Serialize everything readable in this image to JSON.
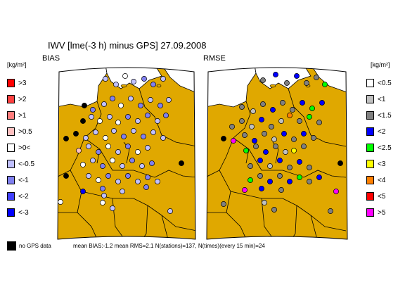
{
  "title": "IWV [lme(-3 h) minus GPS] 27.09.2008",
  "panels": {
    "bias": {
      "label": "BIAS"
    },
    "rmse": {
      "label": "RMSE"
    }
  },
  "unit_label": "[kg/m²]",
  "colors": {
    "land": "#e0a800",
    "sea": "#ffffff",
    "border": "#000000"
  },
  "legend_bias": [
    {
      "label": ">3",
      "color": "#ff0000"
    },
    {
      "label": ">2",
      "color": "#ff4040"
    },
    {
      "label": ">1",
      "color": "#ff7c7c"
    },
    {
      "label": ">0.5",
      "color": "#ffc0c0"
    },
    {
      "label": ">0<",
      "color": "#ffffff"
    },
    {
      "label": "<-0.5",
      "color": "#c0c0ff"
    },
    {
      "label": "<-1",
      "color": "#8080f0"
    },
    {
      "label": "<-2",
      "color": "#4040ff"
    },
    {
      "label": "<-3",
      "color": "#0000ff"
    }
  ],
  "legend_rmse": [
    {
      "label": "<0.5",
      "color": "#ffffff"
    },
    {
      "label": "<1",
      "color": "#c0c0c0"
    },
    {
      "label": "<1.5",
      "color": "#808080"
    },
    {
      "label": "<2",
      "color": "#0000ff"
    },
    {
      "label": "<2.5",
      "color": "#00ff00"
    },
    {
      "label": "<3",
      "color": "#ffff00"
    },
    {
      "label": "<4",
      "color": "#ff8000"
    },
    {
      "label": "<5",
      "color": "#ff0000"
    },
    {
      "label": ">5",
      "color": "#ff00ff"
    }
  ],
  "footer": {
    "no_gps": "no GPS data",
    "stats": "mean BIAS:-1.2  mean RMS=2.1  N(stations)=137, N(times)(every 15 min)=24"
  },
  "stations_bias": [
    [
      150,
      112,
      "<-0.5"
    ],
    [
      165,
      120,
      "<-0.5"
    ],
    [
      178,
      108,
      ">0<"
    ],
    [
      190,
      116,
      "<-0.5"
    ],
    [
      205,
      112,
      "<-1"
    ],
    [
      218,
      120,
      "<-1"
    ],
    [
      232,
      112,
      "<-0.5"
    ],
    [
      120,
      150,
      "nogps"
    ],
    [
      132,
      156,
      "<-1"
    ],
    [
      148,
      148,
      "<-0.5"
    ],
    [
      160,
      140,
      "<-1"
    ],
    [
      172,
      150,
      ">0<"
    ],
    [
      186,
      140,
      "<-0.5"
    ],
    [
      200,
      150,
      "<-1"
    ],
    [
      214,
      142,
      "<-0.5"
    ],
    [
      228,
      150,
      "<-1"
    ],
    [
      240,
      142,
      "<-0.5"
    ],
    [
      118,
      172,
      "nogps"
    ],
    [
      130,
      166,
      "<-0.5"
    ],
    [
      142,
      172,
      ">0<"
    ],
    [
      156,
      166,
      "<-0.5"
    ],
    [
      168,
      174,
      ">0<"
    ],
    [
      182,
      166,
      "<-1"
    ],
    [
      196,
      172,
      "<-0.5"
    ],
    [
      210,
      164,
      "<-1"
    ],
    [
      224,
      172,
      "<-0.5"
    ],
    [
      236,
      164,
      "<-1"
    ],
    [
      94,
      197,
      "nogps"
    ],
    [
      108,
      190,
      "nogps"
    ],
    [
      122,
      196,
      "<-0.5"
    ],
    [
      136,
      188,
      "<-0.5"
    ],
    [
      150,
      196,
      ">0<"
    ],
    [
      162,
      186,
      "<-0.5"
    ],
    [
      176,
      194,
      "<-1"
    ],
    [
      190,
      186,
      "<-0.5"
    ],
    [
      204,
      194,
      "<-1"
    ],
    [
      218,
      188,
      "<-0.5"
    ],
    [
      232,
      196,
      "<-0.5"
    ],
    [
      112,
      214,
      ">0.5"
    ],
    [
      126,
      208,
      "<-0.5"
    ],
    [
      140,
      216,
      "<-1"
    ],
    [
      154,
      208,
      ">0<"
    ],
    [
      168,
      216,
      "<-0.5"
    ],
    [
      182,
      208,
      "<-1"
    ],
    [
      196,
      216,
      ">0<"
    ],
    [
      210,
      210,
      "<-0.5"
    ],
    [
      118,
      234,
      ">0<"
    ],
    [
      132,
      228,
      "<-0.5"
    ],
    [
      146,
      236,
      "<-1"
    ],
    [
      160,
      228,
      ">0<"
    ],
    [
      174,
      236,
      "<-0.5"
    ],
    [
      188,
      228,
      "<-1"
    ],
    [
      202,
      236,
      "<-0.5"
    ],
    [
      216,
      232,
      "<-1"
    ],
    [
      258,
      232,
      "nogps"
    ],
    [
      94,
      250,
      "nogps"
    ],
    [
      126,
      250,
      "<-0.5"
    ],
    [
      140,
      256,
      ">0<"
    ],
    [
      154,
      250,
      "<-1"
    ],
    [
      168,
      258,
      "<-0.5"
    ],
    [
      182,
      250,
      "<-1"
    ],
    [
      196,
      258,
      "<-0.5"
    ],
    [
      210,
      252,
      "<-1"
    ],
    [
      224,
      258,
      "<-0.5"
    ],
    [
      118,
      272,
      "<-3"
    ],
    [
      146,
      268,
      "<-1"
    ],
    [
      174,
      272,
      "<-0.5"
    ],
    [
      208,
      266,
      "<-1"
    ],
    [
      148,
      278,
      "<-0.5"
    ],
    [
      86,
      287,
      ">0<"
    ],
    [
      146,
      288,
      ">0<"
    ],
    [
      160,
      296,
      "<-0.5"
    ],
    [
      242,
      300,
      "<-0.5"
    ]
  ],
  "stations_rmse": [
    [
      374,
      114,
      "<1.5"
    ],
    [
      392,
      106,
      "<2"
    ],
    [
      408,
      118,
      "<1.5"
    ],
    [
      422,
      108,
      "<2"
    ],
    [
      436,
      118,
      "<1.5"
    ],
    [
      450,
      110,
      "<1.5"
    ],
    [
      462,
      120,
      "<2.5"
    ],
    [
      344,
      152,
      "<1.5"
    ],
    [
      360,
      158,
      "<1"
    ],
    [
      374,
      148,
      "<1.5"
    ],
    [
      388,
      156,
      "<2"
    ],
    [
      402,
      146,
      "<1.5"
    ],
    [
      416,
      156,
      "<1.5"
    ],
    [
      430,
      146,
      "<2"
    ],
    [
      444,
      154,
      "<2.5"
    ],
    [
      458,
      146,
      "<2"
    ],
    [
      330,
      180,
      "<1.5"
    ],
    [
      344,
      172,
      "<1.5"
    ],
    [
      358,
      180,
      "<1"
    ],
    [
      372,
      170,
      "<2"
    ],
    [
      386,
      180,
      "<1.5"
    ],
    [
      400,
      172,
      "<1"
    ],
    [
      412,
      164,
      "<4"
    ],
    [
      426,
      172,
      "<1.5"
    ],
    [
      440,
      166,
      "<2.5"
    ],
    [
      454,
      174,
      "<1.5"
    ],
    [
      318,
      197,
      "nogps"
    ],
    [
      332,
      200,
      ">5"
    ],
    [
      348,
      192,
      "<1.5"
    ],
    [
      362,
      200,
      "<2"
    ],
    [
      376,
      190,
      "<1.5"
    ],
    [
      390,
      198,
      "<1"
    ],
    [
      404,
      190,
      "<2"
    ],
    [
      418,
      198,
      "<1.5"
    ],
    [
      432,
      190,
      "<2"
    ],
    [
      446,
      196,
      "<1.5"
    ],
    [
      350,
      214,
      "<2.5"
    ],
    [
      364,
      208,
      "<1.5"
    ],
    [
      378,
      216,
      "<2"
    ],
    [
      392,
      208,
      "<1.5"
    ],
    [
      406,
      216,
      "<1"
    ],
    [
      418,
      214,
      "<3"
    ],
    [
      432,
      208,
      "<1.5"
    ],
    [
      356,
      236,
      "<1.5"
    ],
    [
      370,
      228,
      "<2"
    ],
    [
      384,
      236,
      "<1"
    ],
    [
      398,
      228,
      "<2"
    ],
    [
      412,
      238,
      "<1.5"
    ],
    [
      426,
      230,
      "<2"
    ],
    [
      440,
      238,
      "<1.5"
    ],
    [
      484,
      232,
      "nogps"
    ],
    [
      356,
      256,
      "<2.5"
    ],
    [
      370,
      250,
      "<1.5"
    ],
    [
      384,
      258,
      "<2"
    ],
    [
      398,
      250,
      "<1.5"
    ],
    [
      412,
      258,
      "<2"
    ],
    [
      426,
      252,
      "<2.5"
    ],
    [
      440,
      258,
      "<1.5"
    ],
    [
      454,
      252,
      "<2"
    ],
    [
      348,
      270,
      ">5"
    ],
    [
      372,
      268,
      "<2"
    ],
    [
      400,
      270,
      "<1.5"
    ],
    [
      478,
      272,
      ">5"
    ],
    [
      318,
      290,
      "<1.5"
    ],
    [
      376,
      288,
      "<1"
    ],
    [
      390,
      298,
      "<1.5"
    ],
    [
      470,
      300,
      "<1.5"
    ]
  ]
}
